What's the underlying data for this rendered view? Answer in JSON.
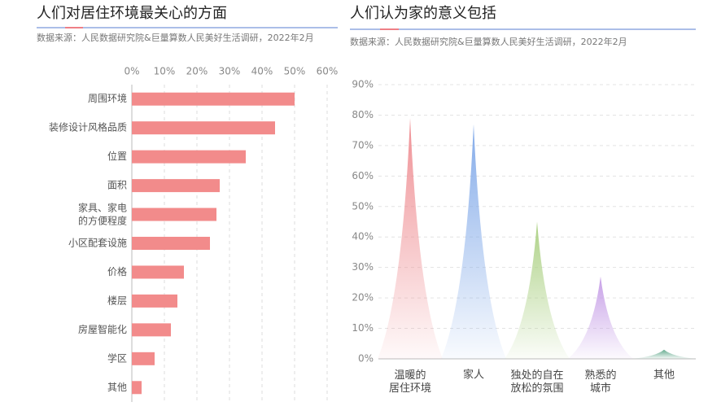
{
  "chart_data": [
    {
      "type": "bar",
      "orientation": "horizontal",
      "title": "人们对居住环境最关心的方面",
      "source": "数据来源：人民数据研究院&巨量算数人民美好生活调研，2022年2月",
      "categories": [
        "周围环境",
        "装修设计风格品质",
        "位置",
        "面积",
        "家具、家电\n的方便程度",
        "小区配套设施",
        "价格",
        "楼层",
        "房屋智能化",
        "学区",
        "其他"
      ],
      "values": [
        50,
        44,
        35,
        27,
        26,
        24,
        16,
        14,
        12,
        7,
        3
      ],
      "color": "#f28b8b",
      "xlim": [
        0,
        60
      ],
      "xticks": [
        {
          "value": 0,
          "label": "0%"
        },
        {
          "value": 10,
          "label": "10%"
        },
        {
          "value": 20,
          "label": "20%"
        },
        {
          "value": 30,
          "label": "30%"
        },
        {
          "value": 40,
          "label": "40%"
        },
        {
          "value": 50,
          "label": "50%"
        },
        {
          "value": 60,
          "label": "60%"
        }
      ],
      "grid": true
    },
    {
      "type": "spike",
      "title": "人们认为家的意义包括",
      "source": "数据来源：人民数据研究院&巨量算数人民美好生活调研，2022年2月",
      "categories": [
        "温暖的\n居住环境",
        "家人",
        "独处的自在\n放松的氛围",
        "熟悉的\n城市",
        "其他"
      ],
      "values": [
        79,
        77,
        45,
        27,
        3
      ],
      "colors": [
        "#ee8a8f",
        "#7ea7e8",
        "#a9cf80",
        "#c49be6",
        "#5fa88a"
      ],
      "ylim": [
        0,
        90
      ],
      "yticks": [
        {
          "value": 0,
          "label": "0%"
        },
        {
          "value": 10,
          "label": "10%"
        },
        {
          "value": 20,
          "label": "20%"
        },
        {
          "value": 30,
          "label": "30%"
        },
        {
          "value": 40,
          "label": "40%"
        },
        {
          "value": 50,
          "label": "50%"
        },
        {
          "value": 60,
          "label": "60%"
        },
        {
          "value": 70,
          "label": "70%"
        },
        {
          "value": 80,
          "label": "80%"
        },
        {
          "value": 90,
          "label": "90%"
        }
      ],
      "grid": true
    }
  ]
}
